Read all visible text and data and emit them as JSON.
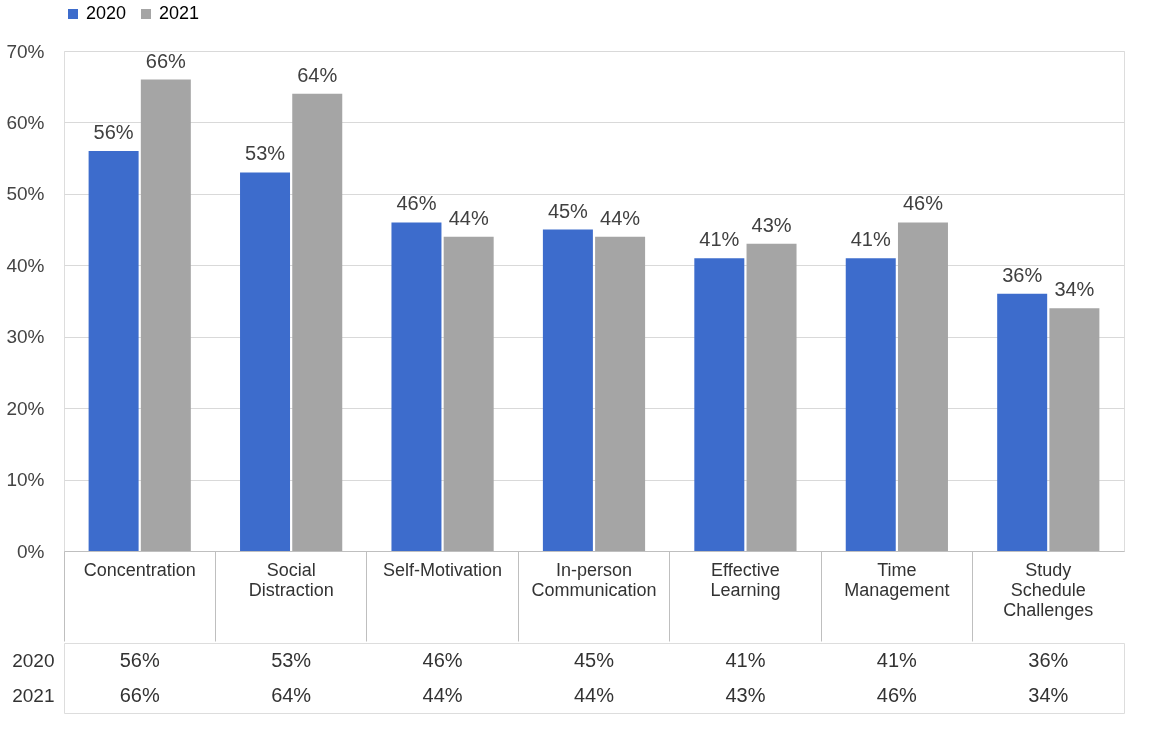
{
  "chart_data": {
    "type": "bar",
    "categories": [
      "Concentration",
      "Social Distraction",
      "Self-Motivation",
      "In-person Communication",
      "Effective Learning",
      "Time Management",
      "Study Schedule Challenges"
    ],
    "series": [
      {
        "name": "2020",
        "color": "#3d6ccc",
        "values": [
          56,
          53,
          46,
          45,
          41,
          41,
          36
        ],
        "value_labels": [
          "56%",
          "53%",
          "46%",
          "45%",
          "41%",
          "41%",
          "36%"
        ]
      },
      {
        "name": "2021",
        "color": "#a5a5a5",
        "values": [
          66,
          64,
          44,
          44,
          43,
          46,
          34
        ],
        "value_labels": [
          "66%",
          "64%",
          "44%",
          "44%",
          "43%",
          "46%",
          "34%"
        ]
      }
    ],
    "ylim": [
      0,
      70
    ],
    "yticks": [
      {
        "value": 0,
        "label": "0%"
      },
      {
        "value": 10,
        "label": "10%"
      },
      {
        "value": 20,
        "label": "20%"
      },
      {
        "value": 30,
        "label": "30%"
      },
      {
        "value": 40,
        "label": "40%"
      },
      {
        "value": 50,
        "label": "50%"
      },
      {
        "value": 60,
        "label": "60%"
      },
      {
        "value": 70,
        "label": "70%"
      }
    ],
    "grid": "y",
    "legend": "top"
  }
}
